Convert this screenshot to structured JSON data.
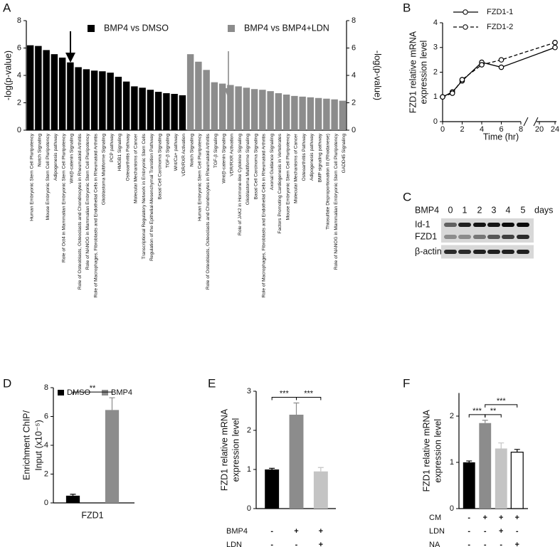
{
  "chart_data": [
    {
      "type": "grouped-bar",
      "panel": "A",
      "ylabel": "-log(p-value)",
      "y2label": "-log(p-value)",
      "ylim": [
        0,
        8
      ],
      "yticks": [
        0,
        2,
        4,
        6,
        8
      ],
      "y2lim": [
        0,
        8
      ],
      "y2ticks": [
        0,
        2,
        4,
        6,
        8
      ],
      "categories": [
        "Human Embryonic Stem Cell Pluripotency",
        "Notch Signaling",
        "Mouse Embryonic Stem Cell Pluripotency",
        "Adipogenesis pathway",
        "Role of Oct4 in Mammalian Embryonic Stem Cell Pluripotency",
        "Wnt/β-catenin Signaling",
        "Role of Osteoblasts, Osteoclasts and Chondrocytes in Rheumatoid Arthritis",
        "Role of NANOG in Mammalian Embryonic Stem Cell Pluripotency",
        "Role of Macrophages, Fibroblasts and Endothelial Cells in Rheumatoid Arthritis",
        "Glioblastoma Multiforme Signaling",
        "PCP pathway",
        "HMGB1 Signaling",
        "Osteoarthritis Pathway",
        "Molecular Mechanisms of Cancer",
        "Transcriptional Regulatory Network in Embryonic Stem Cells",
        "Regulation of the Epithelial-Mesenchymal Transition Pathway",
        "Basal Cell Carcinoma Signaling",
        "TGF-β Signaling",
        "Wnt/Ca+ pathway",
        "VDR/RXR Activation",
        "Notch Signaling",
        "Human Embryonic Stem Cell Pluripotency",
        "Role of Osteoblasts, Osteoclasts and Chondrocytes in Rheumatoid Arthritis",
        "TGF-β Signaling",
        "Wnt/β-catenin Signaling",
        "VDR/RXR Activation",
        "Role of JAK2 in Hormone-like Cytokine Signaling",
        "Glioblastoma Multiforme Signaling",
        "Basal Cell Carcinoma Signaling",
        "Role of Macrophages, Fibroblasts and Endothelial Cells in Rheumatoid Arthritis",
        "Axonal Guidance Signaling",
        "Factors Promoting Cardiogenesis in Vertebrates",
        "Mouse Embryonic Stem Cell Pluripotency",
        "Molecular Mechanisms of Cancer",
        "Osteoarthritis Pathway",
        "Adipogenesis pathway",
        "BMP signaling pathway",
        "Thiosulfate Disproportionation III (Rhodanese)",
        "Role of NANOG in Mammalian Embryonic Stem Cell Pluripotency",
        "GADD45 Signaling"
      ],
      "series": [
        {
          "name": "BMP4 vs DMSO",
          "color": "#000000",
          "values": [
            6.2,
            6.15,
            5.85,
            5.55,
            5.3,
            4.95,
            4.6,
            4.45,
            4.35,
            4.3,
            4.2,
            3.9,
            3.55,
            3.2,
            3.1,
            2.95,
            2.8,
            2.7,
            2.65,
            2.55,
            null,
            null,
            null,
            null,
            null,
            null,
            null,
            null,
            null,
            null,
            null,
            null,
            null,
            null,
            null,
            null,
            null,
            null,
            null,
            null
          ]
        },
        {
          "name": "BMP4 vs BMP4+LDN",
          "color": "#8c8c8c",
          "axis": "y2",
          "values": [
            null,
            null,
            null,
            null,
            null,
            null,
            null,
            null,
            null,
            null,
            null,
            null,
            null,
            null,
            null,
            null,
            null,
            null,
            null,
            null,
            5.55,
            5.0,
            4.4,
            3.5,
            3.4,
            3.3,
            3.2,
            3.1,
            3.0,
            2.95,
            2.85,
            2.7,
            2.6,
            2.5,
            2.45,
            2.4,
            2.35,
            2.3,
            2.25,
            2.15
          ]
        }
      ]
    },
    {
      "type": "line",
      "panel": "B",
      "ylabel": [
        "FZD1 relative mRNA",
        "expression level"
      ],
      "xlabel": "Time (hr)",
      "xlim": [
        0,
        24
      ],
      "x_break": [
        8,
        20
      ],
      "xticks": [
        0,
        2,
        4,
        6,
        8,
        20,
        24
      ],
      "ylim": [
        0,
        4
      ],
      "yticks": [
        0,
        1,
        2,
        3,
        4
      ],
      "x": [
        0,
        1,
        2,
        4,
        6,
        24
      ],
      "series": [
        {
          "name": "FZD1-1",
          "color": "#000000",
          "style": "solid",
          "values": [
            1,
            1.2,
            1.65,
            2.4,
            2.2,
            3.0
          ]
        },
        {
          "name": "FZD1-2",
          "color": "#000000",
          "style": "dashed",
          "values": [
            1,
            1.15,
            1.7,
            2.3,
            2.5,
            3.2
          ]
        }
      ]
    },
    {
      "type": "bar",
      "panel": "D",
      "ylabel": [
        "Enrichment ChIP/",
        "Input (x10⁻⁵)"
      ],
      "ylim": [
        0,
        8
      ],
      "yticks": [
        0,
        2,
        4,
        6,
        8
      ],
      "categories": [
        "FZD1"
      ],
      "series": [
        {
          "name": "DMSO",
          "color": "#000000",
          "values": [
            0.5
          ],
          "errors": [
            0.1
          ]
        },
        {
          "name": "BMP4",
          "color": "#8c8c8c",
          "values": [
            6.45
          ],
          "errors": [
            0.85
          ]
        }
      ],
      "significance": [
        {
          "label": "**",
          "pair": [
            0,
            1
          ]
        }
      ]
    },
    {
      "type": "bar",
      "panel": "E",
      "ylabel": [
        "FZD1 relative mRNA",
        "expression level"
      ],
      "ylim": [
        0,
        3
      ],
      "yticks": [
        0,
        1,
        2,
        3
      ],
      "values": [
        1.0,
        2.4,
        0.95
      ],
      "errors": [
        0.03,
        0.3,
        0.1
      ],
      "colors": [
        "#000000",
        "#8c8c8c",
        "#c4c4c4"
      ],
      "conditions": [
        {
          "name": "BMP4",
          "values": [
            "-",
            "+",
            "+"
          ]
        },
        {
          "name": "LDN",
          "values": [
            "-",
            "-",
            "+"
          ]
        }
      ],
      "significance": [
        {
          "label": "***",
          "pair": [
            0,
            1
          ]
        },
        {
          "label": "***",
          "pair": [
            1,
            2
          ]
        }
      ]
    },
    {
      "type": "bar",
      "panel": "F",
      "ylabel": [
        "FZD1 relative mRNA",
        "expression level"
      ],
      "ylim": [
        0,
        2.5
      ],
      "yticks": [
        0,
        1,
        2
      ],
      "values": [
        1.0,
        1.85,
        1.3,
        1.22
      ],
      "errors": [
        0.03,
        0.06,
        0.12,
        0.06
      ],
      "colors": [
        "#000000",
        "#8c8c8c",
        "#c4c4c4",
        "#ffffff"
      ],
      "conditions": [
        {
          "name": "CM",
          "values": [
            "-",
            "+",
            "+",
            "+"
          ]
        },
        {
          "name": "LDN",
          "values": [
            "-",
            "-",
            "+",
            "-"
          ]
        },
        {
          "name": "NA",
          "values": [
            "-",
            "-",
            "-",
            "+"
          ]
        }
      ],
      "significance": [
        {
          "label": "***",
          "pair": [
            0,
            1
          ]
        },
        {
          "label": "**",
          "pair": [
            1,
            2
          ]
        },
        {
          "label": "***",
          "pair": [
            1,
            3
          ]
        }
      ]
    }
  ],
  "blot": {
    "panel": "C",
    "treatment": "BMP4",
    "lanes": [
      "0",
      "1",
      "2",
      "3",
      "4",
      "5"
    ],
    "unit": "days",
    "rows": [
      "Id-1",
      "FZD1",
      "β-actin"
    ]
  }
}
